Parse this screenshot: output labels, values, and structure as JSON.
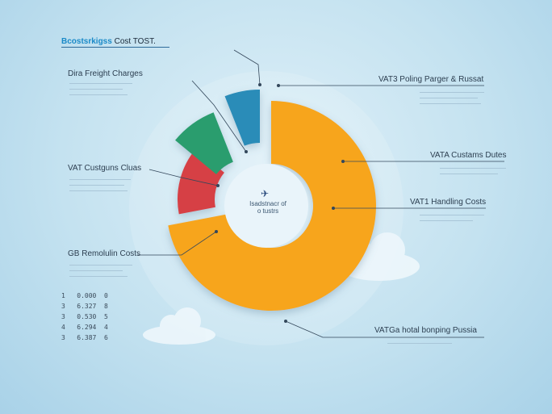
{
  "title": {
    "accent": "Bcostsrkigss",
    "rest": " Cost TOST."
  },
  "center": {
    "line1": "Isadstnacr of",
    "line2": "o tustrs"
  },
  "chart_data": {
    "type": "pie",
    "slices": [
      {
        "name": "Dira Freight Charges",
        "value": 14,
        "color": "#d64045"
      },
      {
        "name": "VAT Custguns Cluas",
        "value": 8,
        "color": "#2a9d6e"
      },
      {
        "name": "VAT3 Poling Parger & Russat",
        "value": 6,
        "color": "#2a8cb8"
      },
      {
        "name": "VATA Custams Dutes",
        "value": 72,
        "color": "#f7a51e"
      }
    ],
    "labels": {
      "dira_freight": "Dira Freight Charges",
      "customs_clears": "VAT Custguns Cluas",
      "gb_removal": "GB Remolulin Costs",
      "poling": "VAT3 Poling Parger & Russat",
      "customs_duties": "VATA Custams Dutes",
      "handling": "VAT1 Handling Costs",
      "hotel": "VATGa hotal bonping Pussia"
    },
    "table_rows": [
      [
        "1",
        "0.000",
        "0"
      ],
      [
        "3",
        "6.327",
        "8"
      ],
      [
        "3",
        "0.530",
        "5"
      ],
      [
        "4",
        "6.294",
        "4"
      ],
      [
        "3",
        "6.387",
        "6"
      ]
    ]
  }
}
